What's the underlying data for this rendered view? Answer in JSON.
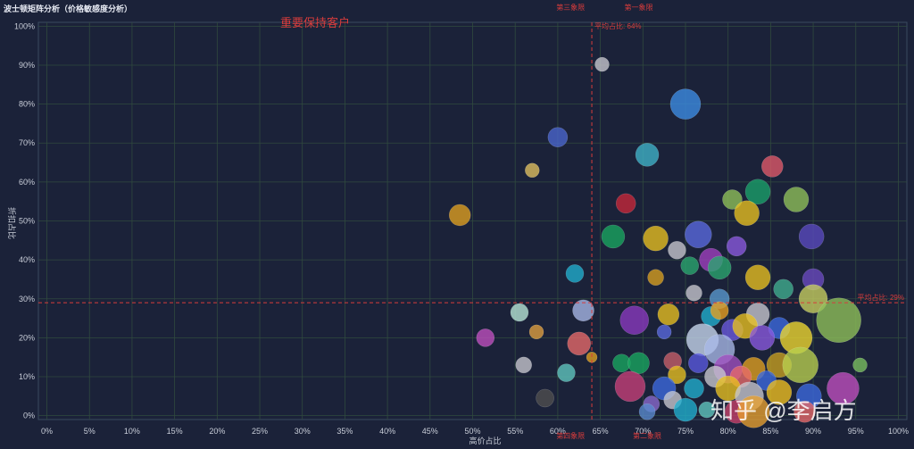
{
  "title": "波士顿矩阵分析（价格敏感度分析）",
  "highlight_label": "重要保持客户",
  "watermark": "知乎 @李启方",
  "chart_data": {
    "type": "scatter",
    "subtype": "bubble",
    "xlabel": "高价占比",
    "ylabel": "折扣占比",
    "xlim": [
      -1,
      101
    ],
    "ylim": [
      -1,
      101
    ],
    "xticks": [
      0,
      5,
      10,
      15,
      20,
      25,
      30,
      35,
      40,
      45,
      50,
      55,
      60,
      65,
      70,
      75,
      80,
      85,
      90,
      95,
      100
    ],
    "yticks": [
      0,
      10,
      20,
      30,
      40,
      50,
      60,
      70,
      80,
      90,
      100
    ],
    "tick_suffix": "%",
    "grid": true,
    "reference_lines": [
      {
        "axis": "x",
        "value": 64,
        "label": "平均占比: 64%",
        "color": "#d83c3c"
      },
      {
        "axis": "y",
        "value": 29,
        "label": "平均占比: 29%",
        "color": "#d83c3c"
      }
    ],
    "quadrant_labels": [
      {
        "text": "第三象限",
        "x": 61.5,
        "y": 105,
        "color": "#d83c3c"
      },
      {
        "text": "第一象限",
        "x": 69.5,
        "y": 105,
        "color": "#d83c3c"
      },
      {
        "text": "第四象限",
        "x": 61.5,
        "y": -5,
        "color": "#d83c3c"
      },
      {
        "text": "第二象限",
        "x": 70.5,
        "y": -5,
        "color": "#d83c3c"
      }
    ],
    "points": [
      {
        "x": 65.2,
        "y": 90.2,
        "r": 8,
        "c": "#c8c8d0"
      },
      {
        "x": 75,
        "y": 80,
        "r": 17,
        "c": "#3c8de6"
      },
      {
        "x": 60,
        "y": 71.5,
        "r": 11,
        "c": "#4a66d0"
      },
      {
        "x": 70.5,
        "y": 67,
        "r": 13,
        "c": "#3fb3c9"
      },
      {
        "x": 57,
        "y": 63,
        "r": 8,
        "c": "#e0c060"
      },
      {
        "x": 85.2,
        "y": 64,
        "r": 12,
        "c": "#e05a6a"
      },
      {
        "x": 83.5,
        "y": 57.5,
        "r": 14,
        "c": "#1aa26a"
      },
      {
        "x": 88,
        "y": 55.5,
        "r": 14,
        "c": "#8fc25a"
      },
      {
        "x": 80.5,
        "y": 55.5,
        "r": 11,
        "c": "#8fc25a"
      },
      {
        "x": 82.2,
        "y": 52,
        "r": 14,
        "c": "#e8c020"
      },
      {
        "x": 48.5,
        "y": 51.5,
        "r": 12,
        "c": "#e0a020"
      },
      {
        "x": 68,
        "y": 54.5,
        "r": 11,
        "c": "#c8283a"
      },
      {
        "x": 66.5,
        "y": 46,
        "r": 13,
        "c": "#18a860"
      },
      {
        "x": 71.5,
        "y": 45.5,
        "r": 14,
        "c": "#e8c020"
      },
      {
        "x": 76.5,
        "y": 46.5,
        "r": 15,
        "c": "#5a6ae0"
      },
      {
        "x": 89.8,
        "y": 46,
        "r": 14,
        "c": "#5a4ac0"
      },
      {
        "x": 74,
        "y": 42.5,
        "r": 10,
        "c": "#c8c8d0"
      },
      {
        "x": 81,
        "y": 43.5,
        "r": 11,
        "c": "#8a5ae0"
      },
      {
        "x": 78,
        "y": 40,
        "r": 13,
        "c": "#a040c0"
      },
      {
        "x": 75.5,
        "y": 38.5,
        "r": 10,
        "c": "#2aa870"
      },
      {
        "x": 79,
        "y": 38,
        "r": 13,
        "c": "#2aa870"
      },
      {
        "x": 62,
        "y": 36.5,
        "r": 10,
        "c": "#20b0d0"
      },
      {
        "x": 71.5,
        "y": 35.5,
        "r": 9,
        "c": "#d8a020"
      },
      {
        "x": 83.5,
        "y": 35.5,
        "r": 14,
        "c": "#e8c020"
      },
      {
        "x": 90,
        "y": 35,
        "r": 12,
        "c": "#6a4ac0"
      },
      {
        "x": 86.5,
        "y": 32.5,
        "r": 11,
        "c": "#40b090"
      },
      {
        "x": 76,
        "y": 31.5,
        "r": 9,
        "c": "#c8c8d0"
      },
      {
        "x": 79,
        "y": 30,
        "r": 11,
        "c": "#5a9ad0"
      },
      {
        "x": 90,
        "y": 30,
        "r": 16,
        "c": "#c8d060"
      },
      {
        "x": 93,
        "y": 24.5,
        "r": 25,
        "c": "#8fc25a"
      },
      {
        "x": 63,
        "y": 27,
        "r": 12,
        "c": "#a8b8e8"
      },
      {
        "x": 55.5,
        "y": 26.5,
        "r": 10,
        "c": "#b8e8d8"
      },
      {
        "x": 73,
        "y": 26,
        "r": 12,
        "c": "#e8c020"
      },
      {
        "x": 69,
        "y": 24.5,
        "r": 16,
        "c": "#8a3ac0"
      },
      {
        "x": 78,
        "y": 25.5,
        "r": 11,
        "c": "#20b0d0"
      },
      {
        "x": 83.5,
        "y": 26,
        "r": 13,
        "c": "#c8c8d0"
      },
      {
        "x": 79,
        "y": 27,
        "r": 10,
        "c": "#e8a020"
      },
      {
        "x": 80.5,
        "y": 22,
        "r": 12,
        "c": "#6a5ae0"
      },
      {
        "x": 82,
        "y": 23,
        "r": 14,
        "c": "#e8c020"
      },
      {
        "x": 86,
        "y": 22.5,
        "r": 12,
        "c": "#3c6ae0"
      },
      {
        "x": 51.5,
        "y": 20,
        "r": 10,
        "c": "#c050c0"
      },
      {
        "x": 57.5,
        "y": 21.5,
        "r": 8,
        "c": "#e0a040"
      },
      {
        "x": 72.5,
        "y": 21.5,
        "r": 8,
        "c": "#5a6ae0"
      },
      {
        "x": 62.5,
        "y": 18.5,
        "r": 13,
        "c": "#e86a6a"
      },
      {
        "x": 77,
        "y": 19.5,
        "r": 18,
        "c": "#c8d8f0"
      },
      {
        "x": 79,
        "y": 17,
        "r": 17,
        "c": "#a8b8e8"
      },
      {
        "x": 84,
        "y": 20,
        "r": 14,
        "c": "#8a5ae0"
      },
      {
        "x": 88,
        "y": 20,
        "r": 18,
        "c": "#f0d830"
      },
      {
        "x": 64,
        "y": 15,
        "r": 6,
        "c": "#e0a020"
      },
      {
        "x": 56,
        "y": 13,
        "r": 9,
        "c": "#c8c8d0"
      },
      {
        "x": 61,
        "y": 11,
        "r": 10,
        "c": "#60c8c0"
      },
      {
        "x": 67.5,
        "y": 13.5,
        "r": 10,
        "c": "#18a860"
      },
      {
        "x": 69.5,
        "y": 13.5,
        "r": 12,
        "c": "#18a860"
      },
      {
        "x": 73.5,
        "y": 14,
        "r": 10,
        "c": "#c8606a"
      },
      {
        "x": 76.5,
        "y": 13.5,
        "r": 11,
        "c": "#5a5ae0"
      },
      {
        "x": 80,
        "y": 12,
        "r": 16,
        "c": "#a050c0"
      },
      {
        "x": 83,
        "y": 12,
        "r": 13,
        "c": "#e0a020"
      },
      {
        "x": 86,
        "y": 13,
        "r": 14,
        "c": "#c8a020"
      },
      {
        "x": 88.5,
        "y": 13,
        "r": 20,
        "c": "#b8d050"
      },
      {
        "x": 95.5,
        "y": 13,
        "r": 8,
        "c": "#7ac060"
      },
      {
        "x": 74,
        "y": 10.5,
        "r": 10,
        "c": "#e8c020"
      },
      {
        "x": 78.5,
        "y": 10,
        "r": 12,
        "c": "#c8c8d0"
      },
      {
        "x": 81.5,
        "y": 10,
        "r": 12,
        "c": "#e86a6a"
      },
      {
        "x": 84.5,
        "y": 9,
        "r": 11,
        "c": "#3c6ae0"
      },
      {
        "x": 68.5,
        "y": 7.5,
        "r": 17,
        "c": "#c8407a"
      },
      {
        "x": 72.5,
        "y": 7,
        "r": 13,
        "c": "#3c6ae0"
      },
      {
        "x": 76,
        "y": 7,
        "r": 11,
        "c": "#20b0d0"
      },
      {
        "x": 80,
        "y": 7,
        "r": 14,
        "c": "#e8c020"
      },
      {
        "x": 82.5,
        "y": 5,
        "r": 16,
        "c": "#c8c8d0"
      },
      {
        "x": 86,
        "y": 6,
        "r": 14,
        "c": "#f0c020"
      },
      {
        "x": 89.5,
        "y": 5,
        "r": 14,
        "c": "#3c6ae0"
      },
      {
        "x": 93.5,
        "y": 7,
        "r": 18,
        "c": "#c050c0"
      },
      {
        "x": 58.5,
        "y": 4.5,
        "r": 10,
        "c": "#505050"
      },
      {
        "x": 71,
        "y": 3,
        "r": 9,
        "c": "#8a6ad0"
      },
      {
        "x": 73.5,
        "y": 4,
        "r": 10,
        "c": "#c8c8d0"
      },
      {
        "x": 75,
        "y": 1.5,
        "r": 13,
        "c": "#20b0d0"
      },
      {
        "x": 77.5,
        "y": 1.5,
        "r": 9,
        "c": "#60c8c0"
      },
      {
        "x": 81,
        "y": 1,
        "r": 13,
        "c": "#c8406a"
      },
      {
        "x": 83,
        "y": 1,
        "r": 18,
        "c": "#e8a030"
      },
      {
        "x": 70.5,
        "y": 1,
        "r": 9,
        "c": "#5a8ad0"
      },
      {
        "x": 89,
        "y": 1,
        "r": 12,
        "c": "#e86a6a"
      }
    ]
  }
}
